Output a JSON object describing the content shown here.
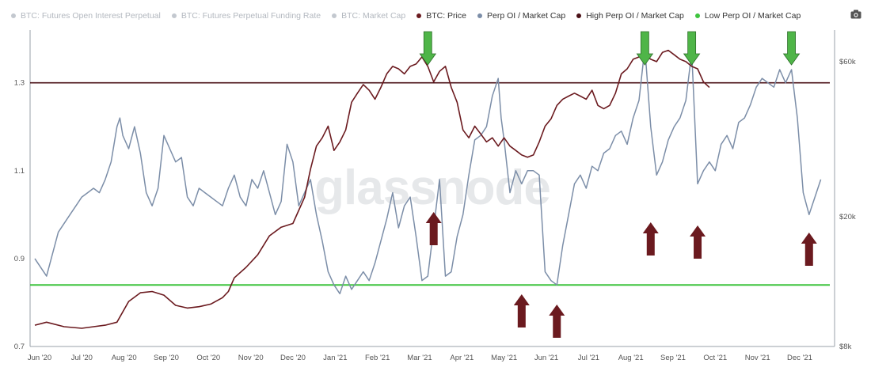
{
  "legend": {
    "items": [
      {
        "label": "BTC: Futures Open Interest Perpetual",
        "color": "#7a1f24",
        "active": false
      },
      {
        "label": "BTC: Futures Perpetual Funding Rate",
        "color": "#7c8ea8",
        "active": false
      },
      {
        "label": "BTC: Market Cap",
        "color": "#7c8ea8",
        "active": false
      },
      {
        "label": "BTC: Price",
        "color": "#6b1a1f",
        "active": true
      },
      {
        "label": "Perp OI / Market Cap",
        "color": "#7c8ea8",
        "active": true
      },
      {
        "label": "High Perp OI / Market Cap",
        "color": "#4a1016",
        "active": true
      },
      {
        "label": "Low Perp OI / Market Cap",
        "color": "#3ec43e",
        "active": true
      }
    ]
  },
  "watermark": "glassnode",
  "camera_icon": "camera-icon",
  "chart_data": {
    "type": "line",
    "x_ticks": [
      "Jun '20",
      "Jul '20",
      "Aug '20",
      "Sep '20",
      "Oct '20",
      "Nov '20",
      "Dec '20",
      "Jan '21",
      "Feb '21",
      "Mar '21",
      "Apr '21",
      "May '21",
      "Jun '21",
      "Jul '21",
      "Aug '21",
      "Sep '21",
      "Oct '21",
      "Nov '21",
      "Dec '21"
    ],
    "y_left": {
      "ticks": [
        "0.7",
        "0.9",
        "1.1",
        "1.3"
      ],
      "range": [
        0.7,
        1.42
      ]
    },
    "y_right": {
      "ticks": [
        "$8k",
        "$20k",
        "$60k"
      ],
      "scale": "log",
      "range": [
        8000,
        75000
      ]
    },
    "reference_lines": [
      {
        "name": "High Perp OI / Market Cap",
        "value": 1.3,
        "color": "#4a1016"
      },
      {
        "name": "Low Perp OI / Market Cap",
        "value": 0.84,
        "color": "#3ec43e"
      }
    ],
    "series": [
      {
        "name": "Perp OI / Market Cap",
        "color": "#7c8ea8",
        "axis": "left",
        "points": [
          [
            0,
            0.9
          ],
          [
            2,
            0.86
          ],
          [
            4,
            0.96
          ],
          [
            5,
            0.98
          ],
          [
            6,
            1.0
          ],
          [
            7,
            1.02
          ],
          [
            8,
            1.04
          ],
          [
            9,
            1.05
          ],
          [
            10,
            1.06
          ],
          [
            11,
            1.05
          ],
          [
            12,
            1.08
          ],
          [
            13,
            1.12
          ],
          [
            14,
            1.2
          ],
          [
            14.5,
            1.22
          ],
          [
            15,
            1.18
          ],
          [
            16,
            1.15
          ],
          [
            17,
            1.2
          ],
          [
            18,
            1.14
          ],
          [
            19,
            1.05
          ],
          [
            20,
            1.02
          ],
          [
            21,
            1.06
          ],
          [
            22,
            1.18
          ],
          [
            23,
            1.15
          ],
          [
            24,
            1.12
          ],
          [
            25,
            1.13
          ],
          [
            26,
            1.04
          ],
          [
            27,
            1.02
          ],
          [
            28,
            1.06
          ],
          [
            29,
            1.05
          ],
          [
            30,
            1.04
          ],
          [
            31,
            1.03
          ],
          [
            32,
            1.02
          ],
          [
            33,
            1.06
          ],
          [
            34,
            1.09
          ],
          [
            35,
            1.04
          ],
          [
            36,
            1.02
          ],
          [
            37,
            1.08
          ],
          [
            38,
            1.06
          ],
          [
            39,
            1.1
          ],
          [
            40,
            1.05
          ],
          [
            41,
            1.0
          ],
          [
            42,
            1.03
          ],
          [
            43,
            1.16
          ],
          [
            44,
            1.12
          ],
          [
            45,
            1.02
          ],
          [
            46,
            1.05
          ],
          [
            47,
            1.08
          ],
          [
            48,
            1.0
          ],
          [
            49,
            0.94
          ],
          [
            50,
            0.87
          ],
          [
            51,
            0.84
          ],
          [
            52,
            0.82
          ],
          [
            53,
            0.86
          ],
          [
            54,
            0.83
          ],
          [
            55,
            0.85
          ],
          [
            56,
            0.87
          ],
          [
            57,
            0.85
          ],
          [
            58,
            0.89
          ],
          [
            59,
            0.94
          ],
          [
            60,
            0.99
          ],
          [
            61,
            1.05
          ],
          [
            62,
            0.97
          ],
          [
            63,
            1.02
          ],
          [
            64,
            1.04
          ],
          [
            65,
            0.95
          ],
          [
            66,
            0.85
          ],
          [
            67,
            0.86
          ],
          [
            68,
            0.97
          ],
          [
            69,
            1.08
          ],
          [
            70,
            0.86
          ],
          [
            71,
            0.87
          ],
          [
            72,
            0.95
          ],
          [
            73,
            1.0
          ],
          [
            74,
            1.09
          ],
          [
            75,
            1.17
          ],
          [
            76,
            1.18
          ],
          [
            77,
            1.2
          ],
          [
            78,
            1.27
          ],
          [
            79,
            1.31
          ],
          [
            79.5,
            1.22
          ],
          [
            80,
            1.17
          ],
          [
            81,
            1.05
          ],
          [
            82,
            1.1
          ],
          [
            83,
            1.07
          ],
          [
            84,
            1.1
          ],
          [
            85,
            1.1
          ],
          [
            86,
            1.09
          ],
          [
            87,
            0.87
          ],
          [
            88,
            0.85
          ],
          [
            89,
            0.84
          ],
          [
            90,
            0.93
          ],
          [
            91,
            1.0
          ],
          [
            92,
            1.07
          ],
          [
            93,
            1.09
          ],
          [
            94,
            1.06
          ],
          [
            95,
            1.11
          ],
          [
            96,
            1.1
          ],
          [
            97,
            1.14
          ],
          [
            98,
            1.15
          ],
          [
            99,
            1.18
          ],
          [
            100,
            1.19
          ],
          [
            101,
            1.16
          ],
          [
            102,
            1.22
          ],
          [
            103,
            1.26
          ],
          [
            104,
            1.38
          ],
          [
            105,
            1.2
          ],
          [
            106,
            1.09
          ],
          [
            107,
            1.12
          ],
          [
            108,
            1.17
          ],
          [
            109,
            1.2
          ],
          [
            110,
            1.22
          ],
          [
            111,
            1.26
          ],
          [
            112,
            1.37
          ],
          [
            113,
            1.07
          ],
          [
            114,
            1.1
          ],
          [
            115,
            1.12
          ],
          [
            116,
            1.1
          ],
          [
            117,
            1.16
          ],
          [
            118,
            1.18
          ],
          [
            119,
            1.15
          ],
          [
            120,
            1.21
          ],
          [
            121,
            1.22
          ],
          [
            122,
            1.25
          ],
          [
            123,
            1.29
          ],
          [
            124,
            1.31
          ],
          [
            125,
            1.3
          ],
          [
            126,
            1.29
          ],
          [
            127,
            1.33
          ],
          [
            128,
            1.3
          ],
          [
            129,
            1.33
          ],
          [
            130,
            1.22
          ],
          [
            131,
            1.05
          ],
          [
            132,
            1.0
          ],
          [
            133,
            1.04
          ],
          [
            134,
            1.08
          ]
        ]
      },
      {
        "name": "BTC: Price",
        "color": "#6b1a1f",
        "axis": "right",
        "points": [
          [
            0,
            9300
          ],
          [
            2,
            9500
          ],
          [
            5,
            9200
          ],
          [
            8,
            9100
          ],
          [
            10,
            9200
          ],
          [
            12,
            9300
          ],
          [
            14,
            9500
          ],
          [
            16,
            11000
          ],
          [
            18,
            11700
          ],
          [
            20,
            11800
          ],
          [
            22,
            11500
          ],
          [
            24,
            10700
          ],
          [
            26,
            10500
          ],
          [
            28,
            10600
          ],
          [
            30,
            10800
          ],
          [
            32,
            11300
          ],
          [
            33,
            11800
          ],
          [
            34,
            13000
          ],
          [
            36,
            14000
          ],
          [
            38,
            15300
          ],
          [
            40,
            17500
          ],
          [
            42,
            18600
          ],
          [
            44,
            19100
          ],
          [
            46,
            23000
          ],
          [
            47,
            28000
          ],
          [
            48,
            33000
          ],
          [
            49,
            35000
          ],
          [
            50,
            38000
          ],
          [
            51,
            32000
          ],
          [
            52,
            34000
          ],
          [
            53,
            37000
          ],
          [
            54,
            45000
          ],
          [
            55,
            48000
          ],
          [
            56,
            51000
          ],
          [
            57,
            49000
          ],
          [
            58,
            46000
          ],
          [
            59,
            50000
          ],
          [
            60,
            55000
          ],
          [
            61,
            58000
          ],
          [
            62,
            57000
          ],
          [
            63,
            55000
          ],
          [
            64,
            58000
          ],
          [
            65,
            59000
          ],
          [
            66,
            62000
          ],
          [
            67,
            58000
          ],
          [
            68,
            52000
          ],
          [
            69,
            56000
          ],
          [
            70,
            58000
          ],
          [
            71,
            50000
          ],
          [
            72,
            45000
          ],
          [
            73,
            37000
          ],
          [
            74,
            35000
          ],
          [
            75,
            38000
          ],
          [
            76,
            36000
          ],
          [
            77,
            34000
          ],
          [
            78,
            35000
          ],
          [
            79,
            33000
          ],
          [
            80,
            35000
          ],
          [
            81,
            33000
          ],
          [
            82,
            32000
          ],
          [
            83,
            31000
          ],
          [
            84,
            30500
          ],
          [
            85,
            31000
          ],
          [
            86,
            34000
          ],
          [
            87,
            38000
          ],
          [
            88,
            40000
          ],
          [
            89,
            44000
          ],
          [
            90,
            46000
          ],
          [
            91,
            47000
          ],
          [
            92,
            48000
          ],
          [
            93,
            47000
          ],
          [
            94,
            46000
          ],
          [
            95,
            49000
          ],
          [
            96,
            44000
          ],
          [
            97,
            43000
          ],
          [
            98,
            44000
          ],
          [
            99,
            48000
          ],
          [
            100,
            55000
          ],
          [
            101,
            57000
          ],
          [
            102,
            61000
          ],
          [
            103,
            62000
          ],
          [
            104,
            63000
          ],
          [
            105,
            61000
          ],
          [
            106,
            60000
          ],
          [
            107,
            64000
          ],
          [
            108,
            65000
          ],
          [
            109,
            63000
          ],
          [
            110,
            61000
          ],
          [
            111,
            60000
          ],
          [
            112,
            58000
          ],
          [
            113,
            57000
          ],
          [
            114,
            52000
          ],
          [
            115,
            50000
          ]
        ]
      }
    ],
    "annotations": [
      {
        "type": "arrow-down",
        "color": "#4fb548",
        "at": 67
      },
      {
        "type": "arrow-down",
        "color": "#4fb548",
        "at": 104
      },
      {
        "type": "arrow-down",
        "color": "#4fb548",
        "at": 112
      },
      {
        "type": "arrow-down",
        "color": "#4fb548",
        "at": 129
      },
      {
        "type": "arrow-up",
        "color": "#6b1a1f",
        "at": 68
      },
      {
        "type": "arrow-up",
        "color": "#6b1a1f",
        "at": 83
      },
      {
        "type": "arrow-up",
        "color": "#6b1a1f",
        "at": 89
      },
      {
        "type": "arrow-up",
        "color": "#6b1a1f",
        "at": 105
      },
      {
        "type": "arrow-up",
        "color": "#6b1a1f",
        "at": 113
      },
      {
        "type": "arrow-up",
        "color": "#6b1a1f",
        "at": 132
      }
    ]
  }
}
